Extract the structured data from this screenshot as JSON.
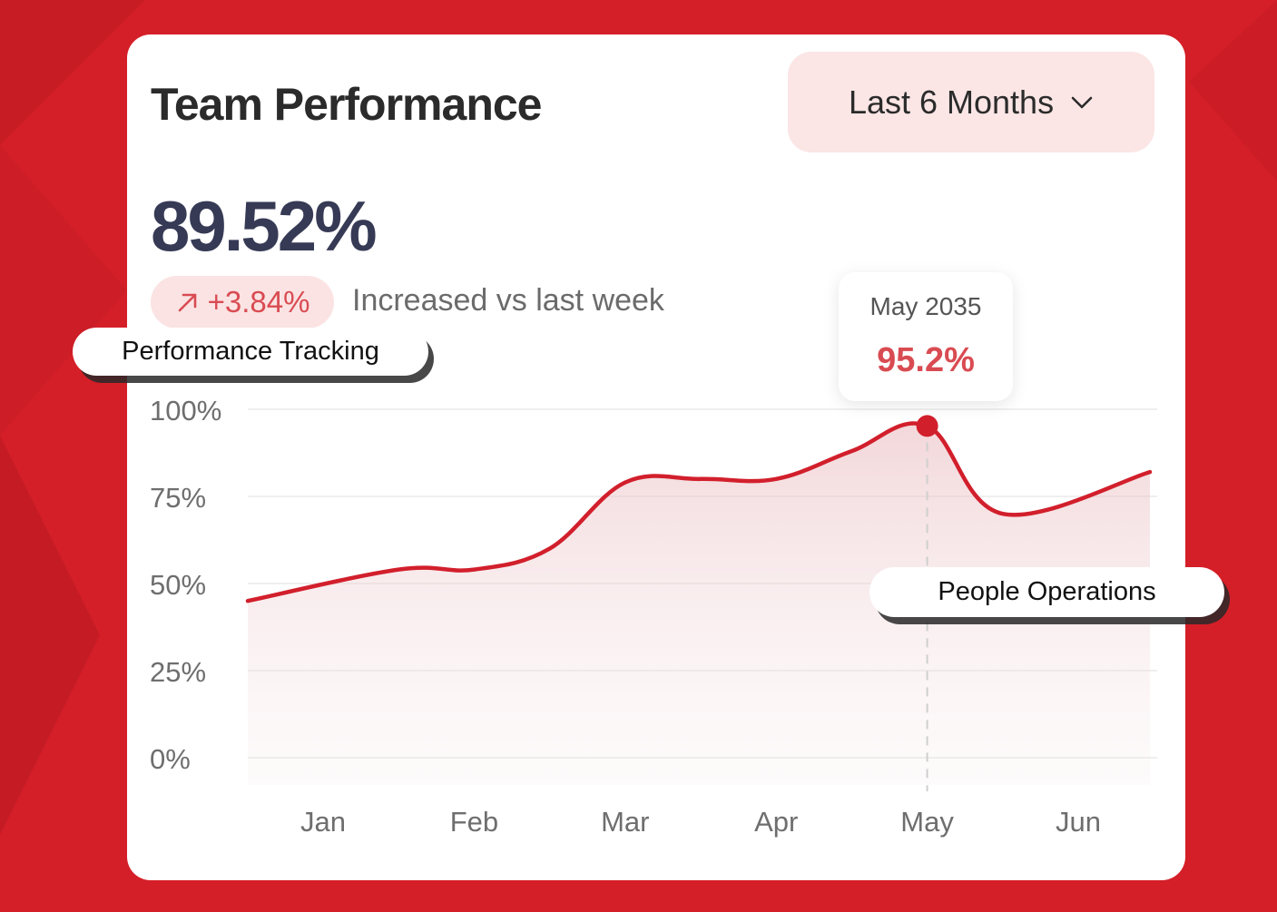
{
  "header": {
    "title": "Team Performance",
    "range_label": "Last 6 Months"
  },
  "summary": {
    "value": "89.52%",
    "change": "+3.84%",
    "change_note": "Increased vs last week"
  },
  "tags": {
    "left": "Performance Tracking",
    "right": "People Operations"
  },
  "tooltip": {
    "label": "May 2035",
    "value": "95.2%"
  },
  "colors": {
    "background": "#d41f28",
    "accent": "#d21f2c",
    "value_text": "#363a55",
    "positive_text": "#d94b52"
  },
  "icons": {
    "trend": "arrow-up-right-icon",
    "dropdown": "chevron-down-icon"
  },
  "chart_data": {
    "type": "area",
    "categories": [
      "Jan",
      "Feb",
      "Mar",
      "Apr",
      "May",
      "Jun"
    ],
    "y_ticks": [
      "100%",
      "75%",
      "50%",
      "25%",
      "0%"
    ],
    "ylim": [
      0,
      100
    ],
    "grid": true,
    "highlight": {
      "x": "May",
      "y": 95.2
    },
    "series": [
      {
        "points": [
          [
            0.0,
            45
          ],
          [
            0.5,
            54
          ],
          [
            1.0,
            54
          ],
          [
            1.5,
            60
          ],
          [
            2.0,
            79
          ],
          [
            2.5,
            80
          ],
          [
            3.0,
            80
          ],
          [
            3.5,
            88
          ],
          [
            4.0,
            95.2
          ],
          [
            4.5,
            70
          ],
          [
            5.0,
            82
          ]
        ]
      }
    ]
  }
}
